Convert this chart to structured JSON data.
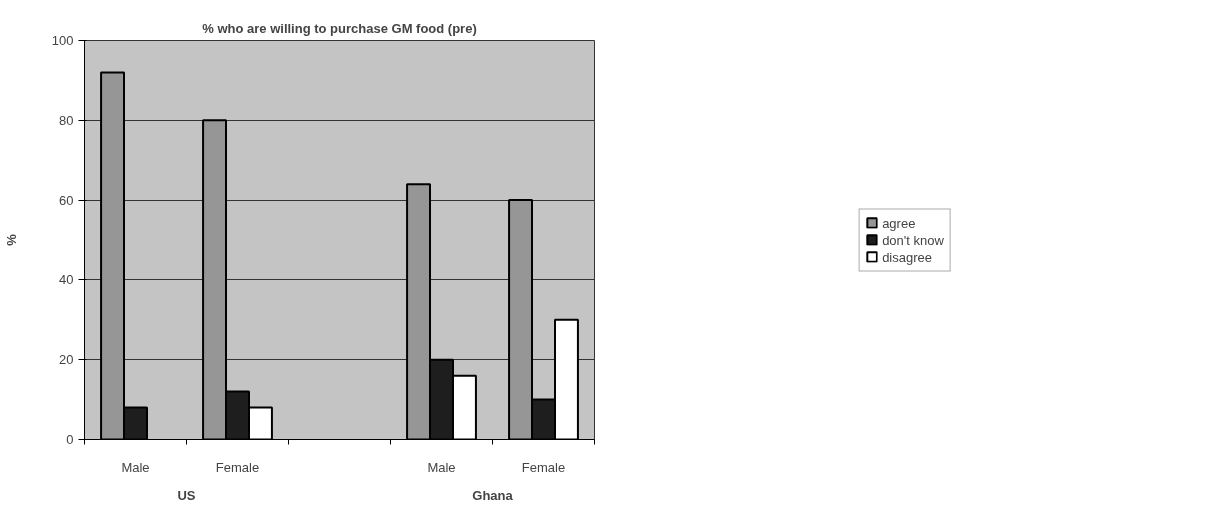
{
  "chart_data": {
    "type": "bar",
    "title": "% who are willing to purchase GM food (pre)",
    "ylabel": "%",
    "categories": [
      "Male",
      "Female",
      null,
      "Male",
      "Female"
    ],
    "series": [
      {
        "name": "agree",
        "color": "#969696",
        "values": [
          92,
          80,
          null,
          64,
          60
        ]
      },
      {
        "name": "don't know",
        "color": "#1e1e1e",
        "values": [
          8,
          12,
          null,
          20,
          10
        ]
      },
      {
        "name": "disagree",
        "color": "#ffffff",
        "values": [
          null,
          8,
          null,
          16,
          30
        ]
      }
    ],
    "annotations": [
      "US",
      "Ghana"
    ],
    "ylim": [
      0,
      100
    ],
    "yticks": [
      0,
      20,
      40,
      60,
      80,
      100
    ],
    "grid": "y",
    "legend": "right"
  }
}
